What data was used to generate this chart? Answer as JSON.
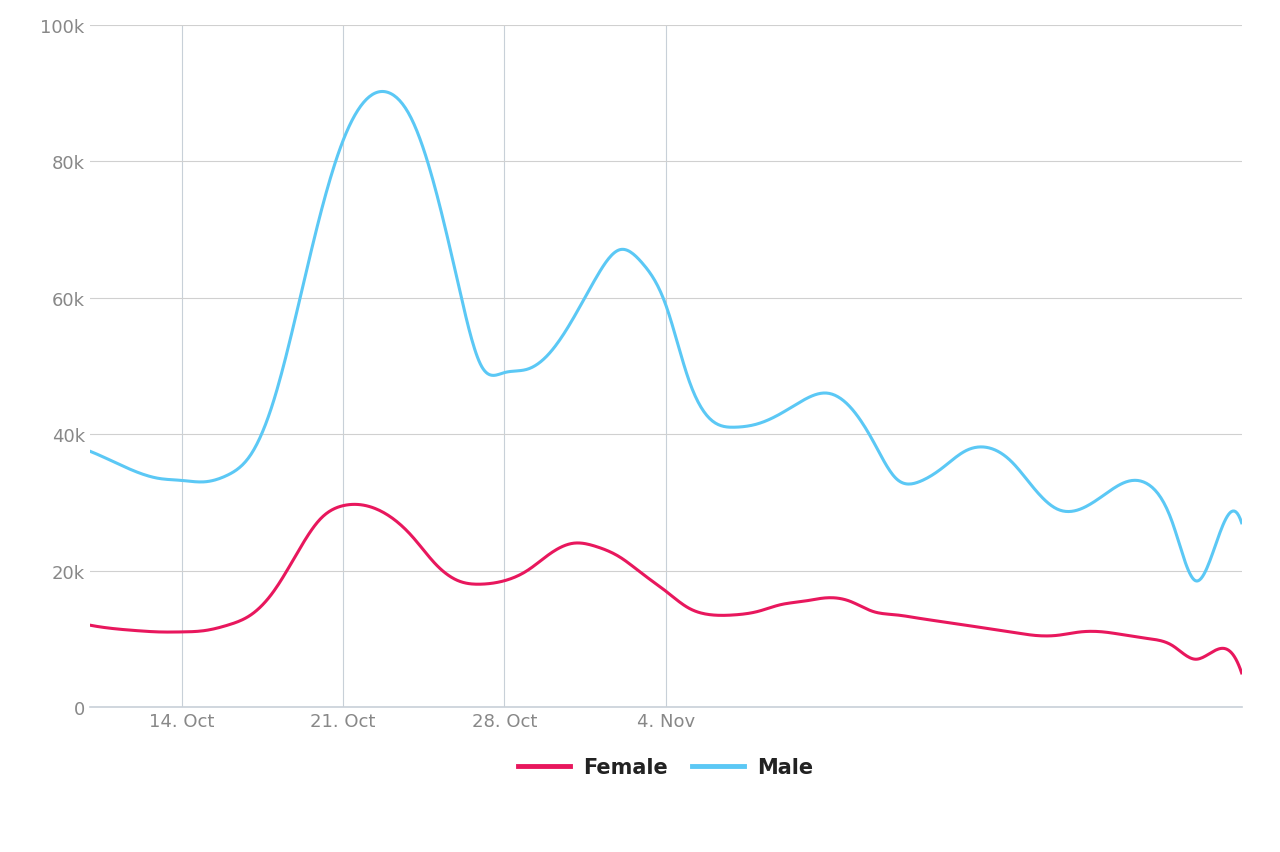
{
  "male_x": [
    0,
    1,
    2,
    3,
    4,
    5,
    6,
    7,
    8,
    9,
    10,
    11,
    12,
    13,
    14,
    15,
    16,
    17,
    18,
    19,
    20,
    21,
    22,
    23,
    24,
    25,
    26,
    27,
    28,
    29,
    30,
    31,
    32,
    33,
    34,
    35,
    36,
    37,
    38,
    39,
    40,
    41,
    42,
    43,
    44,
    45,
    46,
    47,
    48,
    49,
    50
  ],
  "male_y": [
    37500,
    36000,
    34500,
    33500,
    33200,
    33000,
    34000,
    37000,
    45000,
    58000,
    72000,
    83000,
    89000,
    90000,
    86000,
    76000,
    62000,
    50000,
    49000,
    49500,
    52000,
    57000,
    63000,
    67000,
    65000,
    59000,
    48000,
    42000,
    41000,
    41500,
    43000,
    45000,
    46000,
    44000,
    39000,
    33500,
    33000,
    35000,
    37500,
    38000,
    36000,
    32000,
    29000,
    29000,
    31000,
    33000,
    32500,
    27000,
    18500,
    25000,
    27000
  ],
  "female_x": [
    0,
    1,
    2,
    3,
    4,
    5,
    6,
    7,
    8,
    9,
    10,
    11,
    12,
    13,
    14,
    15,
    16,
    17,
    18,
    19,
    20,
    21,
    22,
    23,
    24,
    25,
    26,
    27,
    28,
    29,
    30,
    31,
    32,
    33,
    34,
    35,
    36,
    37,
    38,
    39,
    40,
    41,
    42,
    43,
    44,
    45,
    46,
    47,
    48,
    49,
    50
  ],
  "female_y": [
    12000,
    11500,
    11200,
    11000,
    11000,
    11200,
    12000,
    13500,
    17000,
    22500,
    27500,
    29500,
    29500,
    28000,
    25000,
    21000,
    18500,
    18000,
    18500,
    20000,
    22500,
    24000,
    23500,
    22000,
    19500,
    17000,
    14500,
    13500,
    13500,
    14000,
    15000,
    15500,
    16000,
    15500,
    14000,
    13500,
    13000,
    12500,
    12000,
    11500,
    11000,
    10500,
    10500,
    11000,
    11000,
    10500,
    10000,
    9000,
    7000,
    8500,
    5000
  ],
  "male_color": "#5bc8f5",
  "female_color": "#e8175d",
  "background_color": "#ffffff",
  "grid_color": "#d0d0d0",
  "axis_color": "#c8d0d8",
  "tick_color": "#888888",
  "ylim": [
    0,
    100000
  ],
  "yticks": [
    0,
    20000,
    40000,
    60000,
    80000,
    100000
  ],
  "ytick_labels": [
    "0",
    "20k",
    "40k",
    "60k",
    "80k",
    "100k"
  ],
  "xlim": [
    0,
    50
  ],
  "xtick_positions": [
    4,
    11,
    18,
    25,
    32,
    39,
    46
  ],
  "xtick_labels": [
    "14. Oct",
    "21. Oct",
    "28. Oct",
    "4. Nov",
    "",
    "",
    ""
  ],
  "legend_female": "Female",
  "legend_male": "Male",
  "line_width": 2.2
}
